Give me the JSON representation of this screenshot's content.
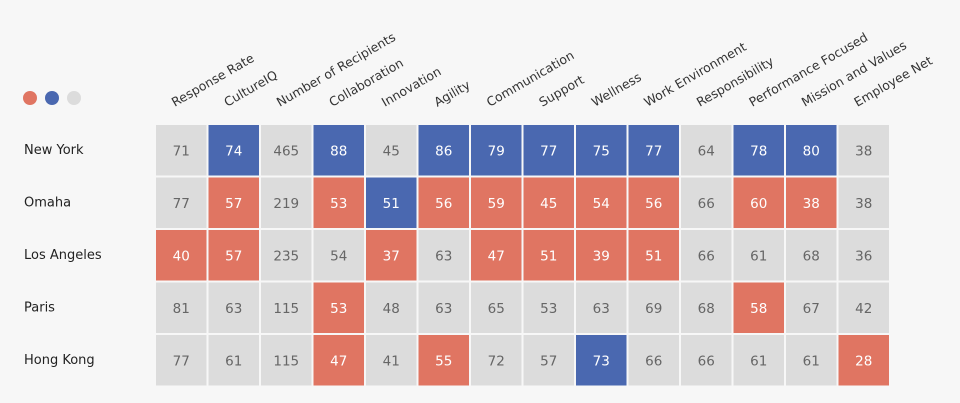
{
  "legend_dots": [
    "#e07562",
    "#4a68b0",
    "#dcdcdc"
  ],
  "columns": [
    "Response Rate",
    "CultureIQ",
    "Number of Recipients",
    "Collaboration",
    "Innovation",
    "Agility",
    "Communication",
    "Support",
    "Wellness",
    "Work Environment",
    "Responsibility",
    "Performance Focused",
    "Mission and Values",
    "Employee Net"
  ],
  "rows": [
    {
      "name": "New York",
      "values": [
        71,
        74,
        465,
        88,
        45,
        86,
        79,
        77,
        75,
        77,
        64,
        78,
        80,
        38
      ],
      "colors": [
        "#dcdcdc",
        "#4a68b0",
        "#dcdcdc",
        "#4a68b0",
        "#dcdcdc",
        "#4a68b0",
        "#4a68b0",
        "#4a68b0",
        "#4a68b0",
        "#4a68b0",
        "#dcdcdc",
        "#4a68b0",
        "#4a68b0",
        "#dcdcdc"
      ]
    },
    {
      "name": "Omaha",
      "values": [
        77,
        57,
        219,
        53,
        51,
        56,
        59,
        45,
        54,
        56,
        66,
        60,
        38,
        38
      ],
      "colors": [
        "#dcdcdc",
        "#e07562",
        "#dcdcdc",
        "#e07562",
        "#4a68b0",
        "#e07562",
        "#e07562",
        "#e07562",
        "#e07562",
        "#e07562",
        "#dcdcdc",
        "#e07562",
        "#e07562",
        "#dcdcdc"
      ]
    },
    {
      "name": "Los Angeles",
      "values": [
        40,
        57,
        235,
        54,
        37,
        63,
        47,
        51,
        39,
        51,
        66,
        61,
        68,
        36
      ],
      "colors": [
        "#e07562",
        "#e07562",
        "#dcdcdc",
        "#dcdcdc",
        "#e07562",
        "#dcdcdc",
        "#e07562",
        "#e07562",
        "#e07562",
        "#e07562",
        "#dcdcdc",
        "#dcdcdc",
        "#dcdcdc",
        "#dcdcdc"
      ]
    },
    {
      "name": "Paris",
      "values": [
        81,
        63,
        115,
        53,
        48,
        63,
        65,
        53,
        63,
        69,
        68,
        58,
        67,
        42
      ],
      "colors": [
        "#dcdcdc",
        "#dcdcdc",
        "#dcdcdc",
        "#e07562",
        "#dcdcdc",
        "#dcdcdc",
        "#dcdcdc",
        "#dcdcdc",
        "#dcdcdc",
        "#dcdcdc",
        "#dcdcdc",
        "#e07562",
        "#dcdcdc",
        "#dcdcdc"
      ]
    },
    {
      "name": "Hong Kong",
      "values": [
        77,
        61,
        115,
        47,
        41,
        55,
        72,
        57,
        73,
        66,
        66,
        61,
        61,
        28
      ],
      "colors": [
        "#dcdcdc",
        "#dcdcdc",
        "#dcdcdc",
        "#e07562",
        "#dcdcdc",
        "#e07562",
        "#dcdcdc",
        "#dcdcdc",
        "#4a68b0",
        "#dcdcdc",
        "#dcdcdc",
        "#dcdcdc",
        "#dcdcdc",
        "#e07562"
      ]
    }
  ]
}
